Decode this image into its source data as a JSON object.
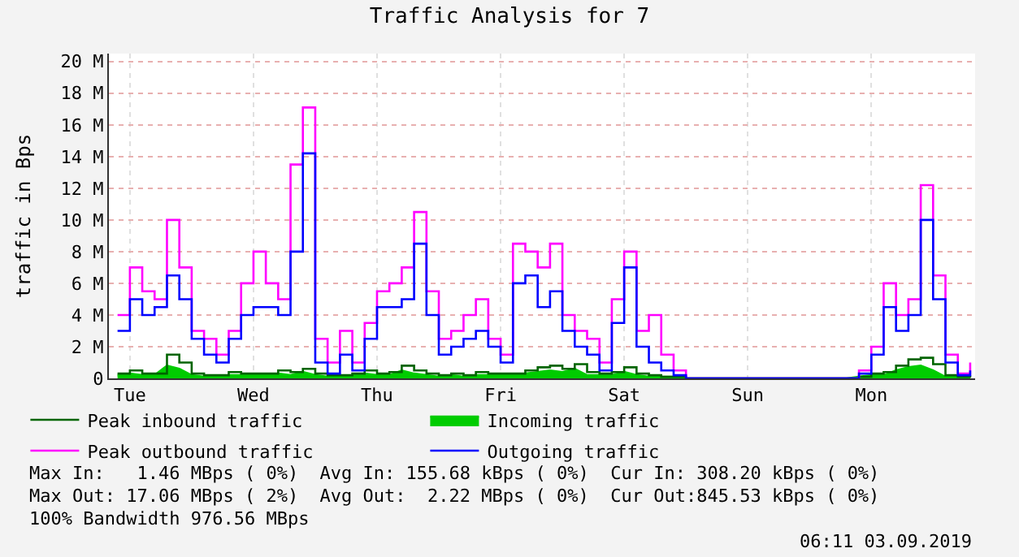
{
  "chart_data": {
    "type": "step",
    "title": "Traffic Analysis for 7",
    "ylabel": "traffic in Bps",
    "categories": [
      null,
      "Tue",
      null,
      null,
      null,
      null,
      null,
      null,
      null,
      null,
      null,
      "Wed",
      null,
      null,
      null,
      null,
      null,
      null,
      null,
      null,
      null,
      "Thu",
      null,
      null,
      null,
      null,
      null,
      null,
      null,
      null,
      null,
      "Fri",
      null,
      null,
      null,
      null,
      null,
      null,
      null,
      null,
      null,
      "Sat",
      null,
      null,
      null,
      null,
      null,
      null,
      null,
      null,
      null,
      "Sun",
      null,
      null,
      null,
      null,
      null,
      null,
      null,
      null,
      null,
      "Mon",
      null,
      null,
      null,
      null,
      null,
      null,
      null,
      null
    ],
    "series": [
      {
        "name": "Peak inbound traffic",
        "color": "#006400",
        "values": [
          0.3,
          0.5,
          0.3,
          0.3,
          1.5,
          1,
          0.3,
          0.2,
          0.2,
          0.4,
          0.3,
          0.3,
          0.3,
          0.5,
          0.4,
          0.6,
          0.3,
          0.2,
          0.2,
          0.3,
          0.5,
          0.3,
          0.4,
          0.8,
          0.5,
          0.3,
          0.2,
          0.3,
          0.2,
          0.4,
          0.3,
          0.3,
          0.3,
          0.5,
          0.7,
          0.8,
          0.6,
          0.9,
          0.4,
          0.3,
          0.4,
          0.7,
          0.3,
          0.2,
          0.1,
          0.1,
          0,
          0,
          0,
          0,
          0,
          0,
          0,
          0,
          0,
          0,
          0,
          0,
          0,
          0,
          0.1,
          0.3,
          0.4,
          0.8,
          1.2,
          1.3,
          0.9,
          0.2,
          0.1,
          0.2
        ]
      },
      {
        "name": "Incoming traffic",
        "type": "area",
        "color": "#00cc00",
        "values": [
          0.2,
          0.3,
          0.2,
          0.2,
          0.8,
          0.6,
          0.2,
          0.1,
          0.1,
          0.2,
          0.2,
          0.2,
          0.2,
          0.3,
          0.2,
          0.4,
          0.2,
          0.1,
          0.1,
          0.2,
          0.3,
          0.2,
          0.2,
          0.5,
          0.3,
          0.2,
          0.1,
          0.2,
          0.1,
          0.2,
          0.2,
          0.2,
          0.2,
          0.3,
          0.4,
          0.5,
          0.4,
          0.6,
          0.2,
          0.2,
          0.2,
          0.4,
          0.2,
          0.1,
          0.1,
          0.1,
          0,
          0,
          0,
          0,
          0,
          0,
          0,
          0,
          0,
          0,
          0,
          0,
          0,
          0,
          0.1,
          0.2,
          0.2,
          0.5,
          0.7,
          0.8,
          0.5,
          0.1,
          0.1,
          0.1
        ]
      },
      {
        "name": "Peak outbound traffic",
        "color": "#ff00ff",
        "values": [
          4,
          7,
          5.5,
          5,
          10,
          7,
          3,
          2.5,
          1.5,
          3,
          6,
          8,
          6,
          5,
          13.5,
          17.1,
          2.5,
          1,
          3,
          1,
          3.5,
          5.5,
          6,
          7,
          10.5,
          5.5,
          2.5,
          3,
          4,
          5,
          2.5,
          1.5,
          8.5,
          8,
          7,
          8.5,
          4,
          3,
          2.5,
          1,
          5,
          8,
          3,
          4,
          1.5,
          0.5,
          0,
          0,
          0,
          0,
          0,
          0,
          0,
          0,
          0,
          0,
          0,
          0,
          0,
          0,
          0.5,
          2,
          6,
          4,
          5,
          12.2,
          6.5,
          1.5,
          0.3,
          1
        ]
      },
      {
        "name": "Outgoing traffic",
        "color": "#0000ff",
        "values": [
          3,
          5,
          4,
          4.5,
          6.5,
          5,
          2.5,
          1.5,
          1,
          2.5,
          4,
          4.5,
          4.5,
          4,
          8,
          14.2,
          1,
          0.3,
          1.5,
          0.5,
          2.5,
          4.5,
          4.5,
          5,
          8.5,
          4,
          1.5,
          2,
          2.5,
          3,
          2,
          1,
          6,
          6.5,
          4.5,
          5.5,
          3,
          2,
          1.5,
          0.5,
          3.5,
          7,
          2,
          1,
          0.5,
          0.2,
          0,
          0,
          0,
          0,
          0,
          0,
          0,
          0,
          0,
          0,
          0,
          0,
          0,
          0,
          0.3,
          1.5,
          4.5,
          3,
          4,
          10,
          5,
          1,
          0.2,
          0.5
        ]
      }
    ],
    "ylim": [
      0,
      20.5
    ],
    "yticks": [
      {
        "value": 0,
        "label": "0"
      },
      {
        "value": 2,
        "label": "2 M"
      },
      {
        "value": 4,
        "label": "4 M"
      },
      {
        "value": 6,
        "label": "6 M"
      },
      {
        "value": 8,
        "label": "8 M"
      },
      {
        "value": 10,
        "label": "10 M"
      },
      {
        "value": 12,
        "label": "12 M"
      },
      {
        "value": 14,
        "label": "14 M"
      },
      {
        "value": 16,
        "label": "16 M"
      },
      {
        "value": 18,
        "label": "18 M"
      },
      {
        "value": 20,
        "label": "20 M"
      }
    ],
    "grid": true,
    "legend": "bottom",
    "marker": "none",
    "line_style": "solid",
    "annotations": [
      "Max In:   1.46 MBps ( 0%)  Avg In: 155.68 kBps ( 0%)  Cur In: 308.20 kBps ( 0%)",
      "Max Out: 17.06 MBps ( 2%)  Avg Out:  2.22 MBps ( 0%)  Cur Out:845.53 kBps ( 0%)",
      "100% Bandwidth 976.56 MBps",
      "06:11 03.09.2019"
    ]
  }
}
